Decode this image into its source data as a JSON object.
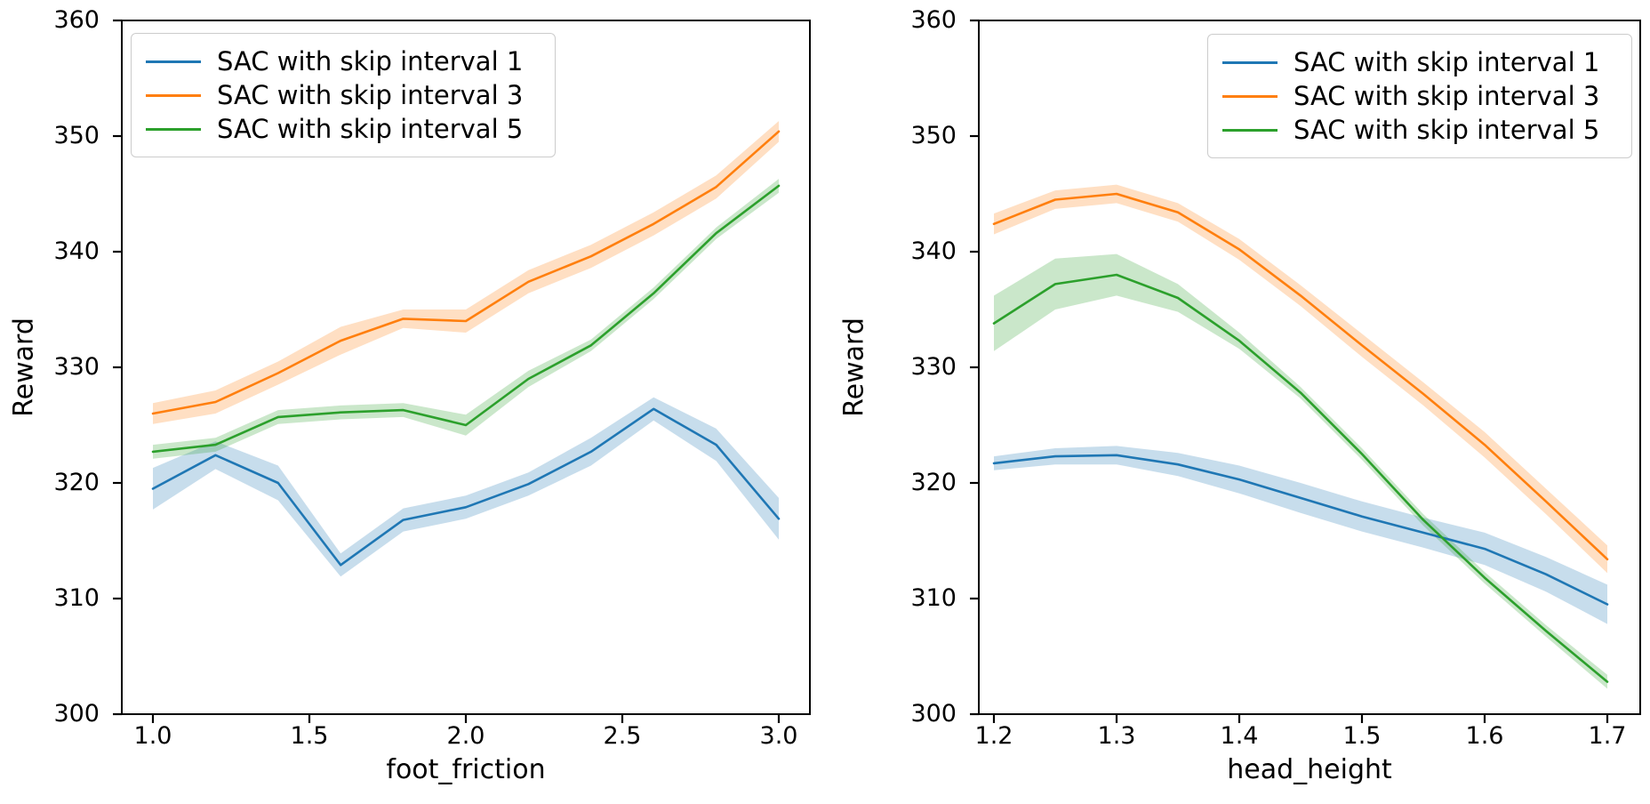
{
  "colors": {
    "series_blue": "#1f77b4",
    "series_orange": "#ff7f0e",
    "series_green": "#2ca02c",
    "band_opacity": 0.25,
    "spine": "#000000",
    "text": "#000000"
  },
  "legend": {
    "items": [
      {
        "label": "SAC with skip interval 1",
        "color": "#1f77b4"
      },
      {
        "label": "SAC with skip interval 3",
        "color": "#ff7f0e"
      },
      {
        "label": "SAC with skip interval 5",
        "color": "#2ca02c"
      }
    ]
  },
  "chart_data": [
    {
      "type": "line",
      "title": "",
      "xlabel": "foot_friction",
      "ylabel": "Reward",
      "ylim": [
        300,
        360
      ],
      "xlim": [
        0.9,
        3.1
      ],
      "grid": false,
      "legend_position": "upper left",
      "yticks": [
        300,
        310,
        320,
        330,
        340,
        350,
        360
      ],
      "ytick_labels": [
        "300",
        "310",
        "320",
        "330",
        "340",
        "350",
        "360"
      ],
      "xticks": [
        1.0,
        1.5,
        2.0,
        2.5,
        3.0
      ],
      "xtick_labels": [
        "1.0",
        "1.5",
        "2.0",
        "2.5",
        "3.0"
      ],
      "x": [
        1.0,
        1.2,
        1.4,
        1.6,
        1.8,
        2.0,
        2.2,
        2.4,
        2.6,
        2.8,
        3.0
      ],
      "series": [
        {
          "name": "SAC with skip interval 1",
          "color": "#1f77b4",
          "values": [
            319.5,
            322.4,
            320.0,
            312.9,
            316.8,
            317.9,
            319.9,
            322.7,
            326.4,
            323.3,
            316.9
          ],
          "band_halfwidth": [
            1.8,
            1.2,
            1.5,
            1.0,
            1.0,
            1.0,
            1.0,
            1.2,
            1.0,
            1.4,
            1.8
          ]
        },
        {
          "name": "SAC with skip interval 3",
          "color": "#ff7f0e",
          "values": [
            326.0,
            327.0,
            329.5,
            332.3,
            334.2,
            334.0,
            337.4,
            339.6,
            342.4,
            345.6,
            350.4
          ],
          "band_halfwidth": [
            0.9,
            1.0,
            1.0,
            1.2,
            0.8,
            1.0,
            1.0,
            1.0,
            1.0,
            1.0,
            0.9
          ]
        },
        {
          "name": "SAC with skip interval 5",
          "color": "#2ca02c",
          "values": [
            322.7,
            323.3,
            325.7,
            326.1,
            326.3,
            325.0,
            329.0,
            331.9,
            336.4,
            341.6,
            345.7
          ],
          "band_halfwidth": [
            0.6,
            0.6,
            0.6,
            0.6,
            0.6,
            0.9,
            0.7,
            0.5,
            0.5,
            0.5,
            0.6
          ]
        }
      ]
    },
    {
      "type": "line",
      "title": "",
      "xlabel": "head_height",
      "ylabel": "Reward",
      "ylim": [
        300,
        360
      ],
      "xlim": [
        1.175,
        1.725
      ],
      "grid": false,
      "legend_position": "upper right",
      "yticks": [
        300,
        310,
        320,
        330,
        340,
        350,
        360
      ],
      "ytick_labels": [
        "300",
        "310",
        "320",
        "330",
        "340",
        "350",
        "360"
      ],
      "xticks": [
        1.2,
        1.3,
        1.4,
        1.5,
        1.6,
        1.7
      ],
      "xtick_labels": [
        "1.2",
        "1.3",
        "1.4",
        "1.5",
        "1.6",
        "1.7"
      ],
      "x": [
        1.2,
        1.25,
        1.3,
        1.35,
        1.4,
        1.45,
        1.5,
        1.55,
        1.6,
        1.65,
        1.7
      ],
      "series": [
        {
          "name": "SAC with skip interval 1",
          "color": "#1f77b4",
          "values": [
            321.7,
            322.3,
            322.4,
            321.6,
            320.3,
            318.7,
            317.1,
            315.7,
            314.3,
            312.1,
            309.5
          ],
          "band_halfwidth": [
            0.6,
            0.7,
            0.8,
            1.0,
            1.2,
            1.3,
            1.3,
            1.3,
            1.4,
            1.5,
            1.7
          ]
        },
        {
          "name": "SAC with skip interval 3",
          "color": "#ff7f0e",
          "values": [
            342.4,
            344.5,
            345.0,
            343.4,
            340.2,
            336.2,
            331.9,
            327.7,
            323.3,
            318.4,
            313.4
          ],
          "band_halfwidth": [
            0.9,
            0.8,
            0.8,
            0.8,
            0.9,
            0.9,
            1.0,
            1.0,
            1.1,
            1.1,
            1.2
          ]
        },
        {
          "name": "SAC with skip interval 5",
          "color": "#2ca02c",
          "values": [
            333.8,
            337.2,
            338.0,
            336.0,
            332.3,
            327.8,
            322.5,
            316.8,
            311.8,
            307.2,
            302.8
          ],
          "band_halfwidth": [
            2.4,
            2.2,
            1.8,
            1.2,
            0.7,
            0.5,
            0.5,
            0.5,
            0.5,
            0.5,
            0.6
          ]
        }
      ]
    }
  ]
}
